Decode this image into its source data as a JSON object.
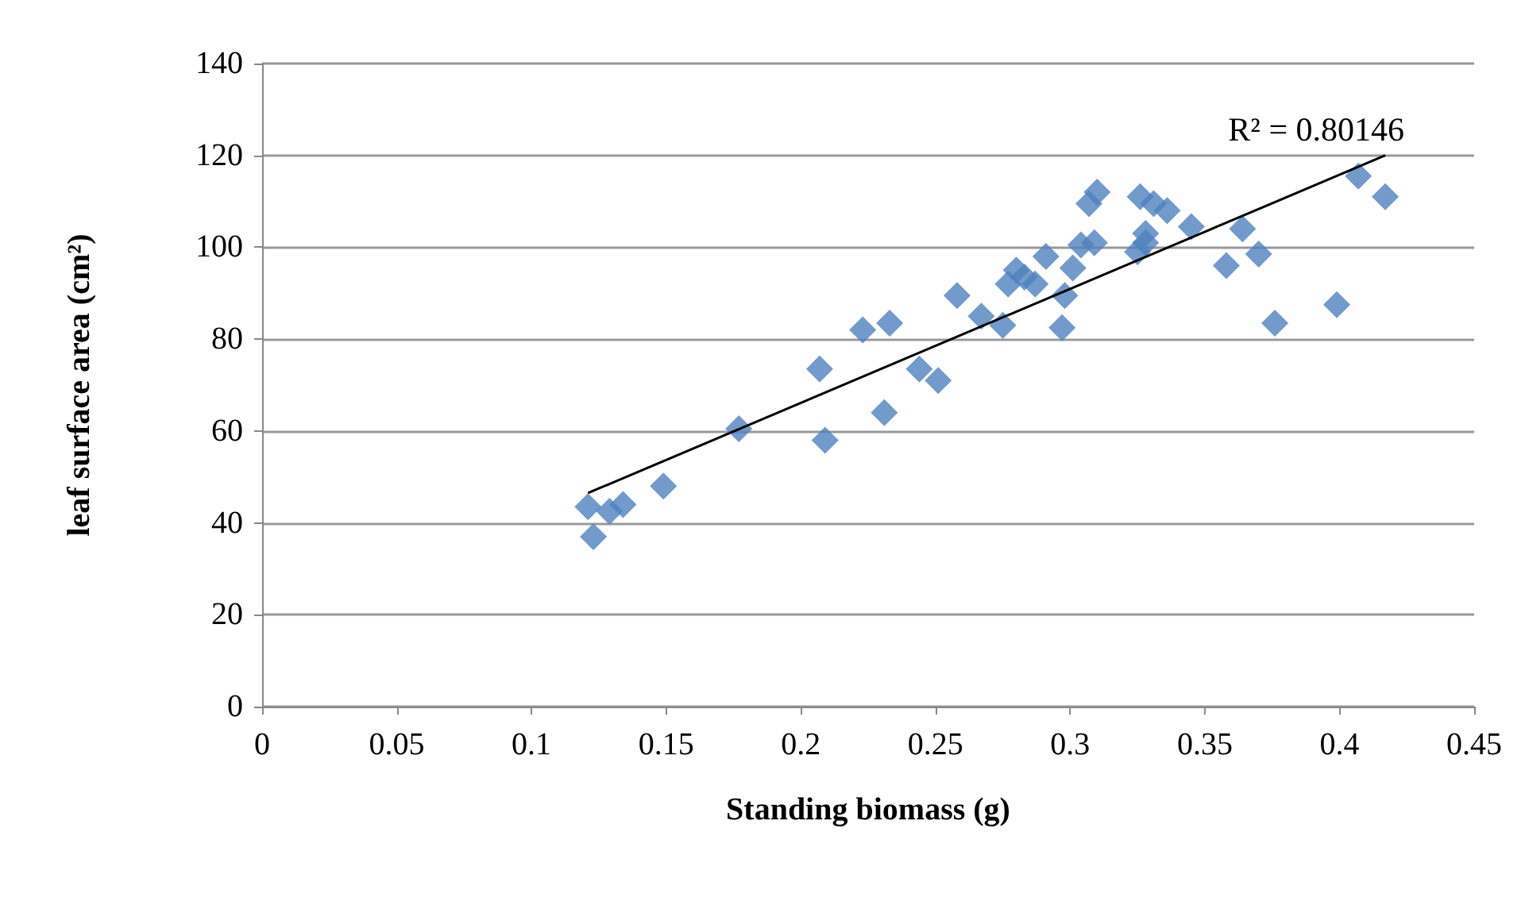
{
  "chart_data": {
    "type": "scatter",
    "xlabel": "Standing biomass (g)",
    "ylabel": "leaf surface area (cm²)",
    "xlim": [
      0,
      0.45
    ],
    "xticks": [
      0,
      0.05,
      0.1,
      0.15,
      0.2,
      0.25,
      0.3,
      0.35,
      0.4,
      0.45
    ],
    "ylim": [
      0,
      140
    ],
    "yticks": [
      0,
      20,
      40,
      60,
      80,
      100,
      120,
      140
    ],
    "grid": "y",
    "marker": "diamond",
    "annotations": [
      {
        "text": "R² = 0.80146",
        "x": 0.417,
        "y": 120
      }
    ],
    "series": [
      {
        "type": "scatter",
        "color": "#4f81bd",
        "x": [
          0.121,
          0.123,
          0.129,
          0.134,
          0.149,
          0.177,
          0.207,
          0.209,
          0.223,
          0.231,
          0.233,
          0.244,
          0.251,
          0.258,
          0.267,
          0.275,
          0.277,
          0.28,
          0.283,
          0.287,
          0.291,
          0.297,
          0.298,
          0.301,
          0.304,
          0.307,
          0.309,
          0.31,
          0.325,
          0.326,
          0.328,
          0.328,
          0.331,
          0.336,
          0.345,
          0.358,
          0.364,
          0.37,
          0.376,
          0.399,
          0.407,
          0.417
        ],
        "values": [
          43.5,
          37,
          42.5,
          44,
          48,
          60.5,
          73.5,
          58,
          82,
          64,
          83.5,
          73.5,
          71,
          89.5,
          85,
          83,
          92,
          95,
          93.5,
          92,
          98,
          82.5,
          89.5,
          95.5,
          100.5,
          109.5,
          101,
          112,
          99,
          111,
          103,
          101,
          109.5,
          108,
          104.5,
          96,
          104,
          98.5,
          83.5,
          87.5,
          115.5,
          111
        ]
      },
      {
        "type": "line",
        "color": "#000000",
        "marker": "none",
        "x": [
          0.121,
          0.417
        ],
        "values": [
          46.5,
          120
        ]
      }
    ]
  }
}
